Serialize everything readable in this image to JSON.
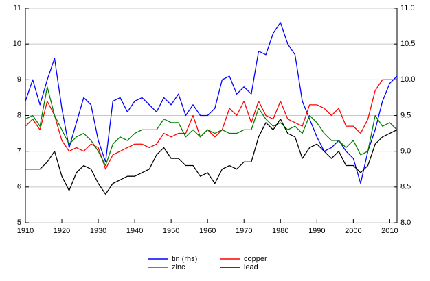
{
  "chart_data": {
    "type": "line",
    "x": [
      1910,
      1912,
      1914,
      1916,
      1918,
      1920,
      1922,
      1924,
      1926,
      1928,
      1930,
      1932,
      1934,
      1936,
      1938,
      1940,
      1942,
      1944,
      1946,
      1948,
      1950,
      1952,
      1954,
      1956,
      1958,
      1960,
      1962,
      1964,
      1966,
      1968,
      1970,
      1972,
      1974,
      1976,
      1978,
      1980,
      1982,
      1984,
      1986,
      1988,
      1990,
      1992,
      1994,
      1996,
      1998,
      2000,
      2002,
      2004,
      2006,
      2008,
      2010,
      2012
    ],
    "xlim": [
      1910,
      2012
    ],
    "xticks": [
      1910,
      1920,
      1930,
      1940,
      1950,
      1960,
      1970,
      1980,
      1990,
      2000,
      2010
    ],
    "ylim": [
      5,
      11
    ],
    "yticks": [
      5,
      6,
      7,
      8,
      9,
      10,
      11
    ],
    "y2lim": [
      8,
      11
    ],
    "y2ticks": [
      {
        "value": 8,
        "label": "8.0"
      },
      8.5,
      {
        "value": 9,
        "label": "9.0"
      },
      9.5,
      {
        "value": 10,
        "label": "10.0"
      },
      10.5,
      {
        "value": 11,
        "label": "11.0"
      }
    ],
    "grid": true,
    "series": [
      {
        "name": "tin (rhs)",
        "color": "#0000ff",
        "axis": "y2",
        "values": [
          9.7,
          10.0,
          9.65,
          10.0,
          10.3,
          9.6,
          9.05,
          9.4,
          9.75,
          9.65,
          9.15,
          8.85,
          9.7,
          9.75,
          9.55,
          9.7,
          9.75,
          9.65,
          9.55,
          9.75,
          9.65,
          9.8,
          9.5,
          9.65,
          9.5,
          9.5,
          9.6,
          10.0,
          10.05,
          9.8,
          9.9,
          9.8,
          10.4,
          10.35,
          10.65,
          10.8,
          10.5,
          10.35,
          9.7,
          9.45,
          9.2,
          9.0,
          9.05,
          9.15,
          9.0,
          8.9,
          8.55,
          9.0,
          9.3,
          9.7,
          9.95,
          10.05
        ]
      },
      {
        "name": "copper",
        "color": "#ff0000",
        "values": [
          7.7,
          7.9,
          7.6,
          8.4,
          8.0,
          7.3,
          7.0,
          7.1,
          7.0,
          7.2,
          7.1,
          6.5,
          6.9,
          7.0,
          7.1,
          7.2,
          7.2,
          7.1,
          7.2,
          7.5,
          7.4,
          7.5,
          7.5,
          8.0,
          7.4,
          7.6,
          7.4,
          7.6,
          8.2,
          8.0,
          8.4,
          7.8,
          8.4,
          8.0,
          7.9,
          8.4,
          7.9,
          7.8,
          7.7,
          8.3,
          8.3,
          8.2,
          8.0,
          8.2,
          7.7,
          7.7,
          7.5,
          7.9,
          8.7,
          9.0,
          9.0,
          9.0
        ]
      },
      {
        "name": "zinc",
        "color": "#008000",
        "values": [
          7.9,
          8.0,
          7.7,
          8.8,
          8.0,
          7.6,
          7.2,
          7.4,
          7.5,
          7.3,
          7.0,
          6.6,
          7.2,
          7.4,
          7.3,
          7.5,
          7.6,
          7.6,
          7.6,
          7.9,
          7.8,
          7.8,
          7.4,
          7.6,
          7.4,
          7.6,
          7.5,
          7.6,
          7.5,
          7.5,
          7.6,
          7.6,
          8.2,
          7.9,
          7.7,
          7.8,
          7.6,
          7.7,
          7.5,
          8.0,
          7.8,
          7.5,
          7.3,
          7.3,
          7.1,
          7.3,
          6.9,
          7.0,
          8.0,
          7.7,
          7.8,
          7.6
        ]
      },
      {
        "name": "lead",
        "color": "#000000",
        "values": [
          6.5,
          6.5,
          6.5,
          6.7,
          7.0,
          6.3,
          5.9,
          6.4,
          6.6,
          6.5,
          6.1,
          5.8,
          6.1,
          6.2,
          6.3,
          6.3,
          6.4,
          6.5,
          6.9,
          7.1,
          6.8,
          6.8,
          6.6,
          6.6,
          6.3,
          6.4,
          6.1,
          6.5,
          6.6,
          6.5,
          6.7,
          6.7,
          7.4,
          7.8,
          7.6,
          7.9,
          7.5,
          7.4,
          6.8,
          7.1,
          7.2,
          7.0,
          6.8,
          7.0,
          6.6,
          6.6,
          6.4,
          6.6,
          7.2,
          7.4,
          7.5,
          7.6
        ]
      }
    ]
  }
}
